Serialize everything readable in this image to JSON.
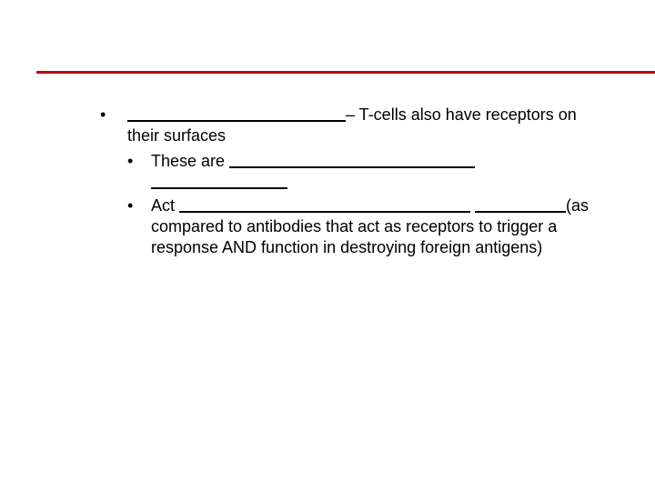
{
  "slide": {
    "accent_color": "#c00000",
    "background_color": "#ffffff",
    "font_family": "Arial",
    "font_size_pt": 18,
    "text_color": "#000000",
    "bullets": {
      "level1": [
        {
          "text_after_blank": "– T-cells also have receptors on their surfaces"
        }
      ],
      "level2": [
        {
          "prefix": "These are "
        },
        {
          "prefix": "Act ",
          "suffix": "(as compared to antibodies that act as receptors to trigger a response AND function in destroying foreign antigens)"
        }
      ]
    }
  }
}
